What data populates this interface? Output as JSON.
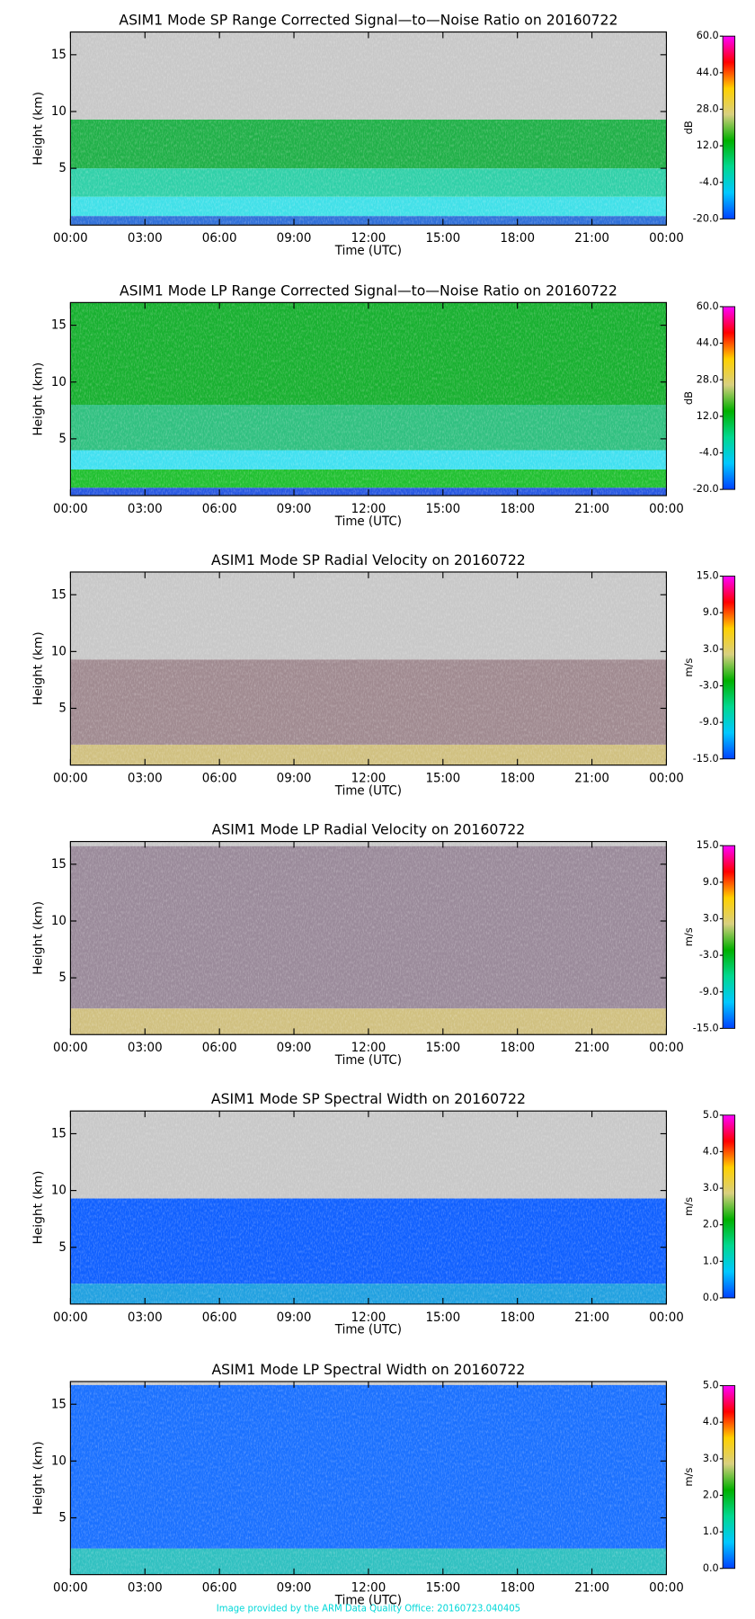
{
  "chart_data": [
    {
      "type": "heatmap",
      "title": "ASIM1 Mode SP Range Corrected Signal—to—Noise Ratio on 20160722",
      "xlabel": "Time (UTC)",
      "ylabel": "Height (km)",
      "xlim": [
        0,
        24
      ],
      "xticks": [
        {
          "value": 0,
          "label": "00:00"
        },
        {
          "value": 3,
          "label": "03:00"
        },
        {
          "value": 6,
          "label": "06:00"
        },
        {
          "value": 9,
          "label": "09:00"
        },
        {
          "value": 12,
          "label": "12:00"
        },
        {
          "value": 15,
          "label": "15:00"
        },
        {
          "value": 18,
          "label": "18:00"
        },
        {
          "value": 21,
          "label": "21:00"
        },
        {
          "value": 24,
          "label": "00:00"
        }
      ],
      "ylim": [
        0,
        17
      ],
      "yticks": [
        5,
        10,
        15
      ],
      "colorbar": {
        "label": "dB",
        "lim": [
          -20,
          60
        ],
        "ticks": [
          {
            "value": -20,
            "label": "-20.0"
          },
          {
            "value": -4,
            "label": "-4.0"
          },
          {
            "value": 12,
            "label": "12.0"
          },
          {
            "value": 28,
            "label": "28.0"
          },
          {
            "value": 44,
            "label": "44.0"
          },
          {
            "value": 60,
            "label": "60.0"
          }
        ],
        "colors": [
          "#0040ff",
          "#00c8ff",
          "#00d890",
          "#00b000",
          "#d8d080",
          "#ffd000",
          "#ff0000",
          "#ff00ff"
        ]
      },
      "bands": [
        {
          "y": [
            0,
            0.8
          ],
          "color": "#3070d8"
        },
        {
          "y": [
            0.8,
            2.5
          ],
          "color": "#40e0e8"
        },
        {
          "y": [
            2.5,
            5
          ],
          "color": "#30d0a8"
        },
        {
          "y": [
            5,
            9.3
          ],
          "color": "#20b048"
        },
        {
          "y": [
            9.3,
            17
          ],
          "color": "#c8c8c8"
        }
      ]
    },
    {
      "type": "heatmap",
      "title": "ASIM1 Mode LP Range Corrected Signal—to—Noise Ratio on 20160722",
      "xlabel": "Time (UTC)",
      "ylabel": "Height (km)",
      "xlim": [
        0,
        24
      ],
      "xticks": [
        {
          "value": 0,
          "label": "00:00"
        },
        {
          "value": 3,
          "label": "03:00"
        },
        {
          "value": 6,
          "label": "06:00"
        },
        {
          "value": 9,
          "label": "09:00"
        },
        {
          "value": 12,
          "label": "12:00"
        },
        {
          "value": 15,
          "label": "15:00"
        },
        {
          "value": 18,
          "label": "18:00"
        },
        {
          "value": 21,
          "label": "21:00"
        },
        {
          "value": 24,
          "label": "00:00"
        }
      ],
      "ylim": [
        0,
        17
      ],
      "yticks": [
        5,
        10,
        15
      ],
      "colorbar": {
        "label": "dB",
        "lim": [
          -20,
          60
        ],
        "ticks": [
          {
            "value": -20,
            "label": "-20.0"
          },
          {
            "value": -4,
            "label": "-4.0"
          },
          {
            "value": 12,
            "label": "12.0"
          },
          {
            "value": 28,
            "label": "28.0"
          },
          {
            "value": 44,
            "label": "44.0"
          },
          {
            "value": 60,
            "label": "60.0"
          }
        ],
        "colors": [
          "#0040ff",
          "#00c8ff",
          "#00d890",
          "#00b000",
          "#d8d080",
          "#ffd000",
          "#ff0000",
          "#ff00ff"
        ]
      },
      "bands": [
        {
          "y": [
            0,
            0.7
          ],
          "color": "#2858e0"
        },
        {
          "y": [
            0.7,
            2.3
          ],
          "color": "#20c030"
        },
        {
          "y": [
            2.3,
            4
          ],
          "color": "#40e0f0"
        },
        {
          "y": [
            4,
            8
          ],
          "color": "#30c080"
        },
        {
          "y": [
            8,
            17
          ],
          "color": "#18b030"
        }
      ]
    },
    {
      "type": "heatmap",
      "title": "ASIM1 Mode SP Radial Velocity  on 20160722",
      "xlabel": "Time (UTC)",
      "ylabel": "Height (km)",
      "xlim": [
        0,
        24
      ],
      "xticks": [
        {
          "value": 0,
          "label": "00:00"
        },
        {
          "value": 3,
          "label": "03:00"
        },
        {
          "value": 6,
          "label": "06:00"
        },
        {
          "value": 9,
          "label": "09:00"
        },
        {
          "value": 12,
          "label": "12:00"
        },
        {
          "value": 15,
          "label": "15:00"
        },
        {
          "value": 18,
          "label": "18:00"
        },
        {
          "value": 21,
          "label": "21:00"
        },
        {
          "value": 24,
          "label": "00:00"
        }
      ],
      "ylim": [
        0,
        17
      ],
      "yticks": [
        5,
        10,
        15
      ],
      "colorbar": {
        "label": "m/s",
        "lim": [
          -15,
          15
        ],
        "ticks": [
          {
            "value": -15,
            "label": "-15.0"
          },
          {
            "value": -9,
            "label": "-9.0"
          },
          {
            "value": -3,
            "label": "-3.0"
          },
          {
            "value": 3,
            "label": "3.0"
          },
          {
            "value": 9,
            "label": "9.0"
          },
          {
            "value": 15,
            "label": "15.0"
          }
        ],
        "colors": [
          "#0040ff",
          "#00c8ff",
          "#00d890",
          "#00b000",
          "#d8d080",
          "#ffd000",
          "#ff0000",
          "#ff00ff"
        ]
      },
      "bands": [
        {
          "y": [
            0,
            1.8
          ],
          "color": "#d0c080"
        },
        {
          "y": [
            1.8,
            9.3
          ],
          "color": "#a08a90"
        },
        {
          "y": [
            9.3,
            17
          ],
          "color": "#c8c8c8"
        }
      ]
    },
    {
      "type": "heatmap",
      "title": "ASIM1 Mode LP Radial Velocity  on 20160722",
      "xlabel": "Time (UTC)",
      "ylabel": "Height (km)",
      "xlim": [
        0,
        24
      ],
      "xticks": [
        {
          "value": 0,
          "label": "00:00"
        },
        {
          "value": 3,
          "label": "03:00"
        },
        {
          "value": 6,
          "label": "06:00"
        },
        {
          "value": 9,
          "label": "09:00"
        },
        {
          "value": 12,
          "label": "12:00"
        },
        {
          "value": 15,
          "label": "15:00"
        },
        {
          "value": 18,
          "label": "18:00"
        },
        {
          "value": 21,
          "label": "21:00"
        },
        {
          "value": 24,
          "label": "00:00"
        }
      ],
      "ylim": [
        0,
        17
      ],
      "yticks": [
        5,
        10,
        15
      ],
      "colorbar": {
        "label": "m/s",
        "lim": [
          -15,
          15
        ],
        "ticks": [
          {
            "value": -15,
            "label": "-15.0"
          },
          {
            "value": -9,
            "label": "-9.0"
          },
          {
            "value": -3,
            "label": "-3.0"
          },
          {
            "value": 3,
            "label": "3.0"
          },
          {
            "value": 9,
            "label": "9.0"
          },
          {
            "value": 15,
            "label": "15.0"
          }
        ],
        "colors": [
          "#0040ff",
          "#00c8ff",
          "#00d890",
          "#00b000",
          "#d8d080",
          "#ffd000",
          "#ff0000",
          "#ff00ff"
        ]
      },
      "bands": [
        {
          "y": [
            0,
            2.3
          ],
          "color": "#d0c080"
        },
        {
          "y": [
            2.3,
            16.6
          ],
          "color": "#9a8a9a"
        },
        {
          "y": [
            16.6,
            17
          ],
          "color": "#c8c8c8"
        }
      ]
    },
    {
      "type": "heatmap",
      "title": "ASIM1 Mode SP Spectral Width  on 20160722",
      "xlabel": "Time (UTC)",
      "ylabel": "Height (km)",
      "xlim": [
        0,
        24
      ],
      "xticks": [
        {
          "value": 0,
          "label": "00:00"
        },
        {
          "value": 3,
          "label": "03:00"
        },
        {
          "value": 6,
          "label": "06:00"
        },
        {
          "value": 9,
          "label": "09:00"
        },
        {
          "value": 12,
          "label": "12:00"
        },
        {
          "value": 15,
          "label": "15:00"
        },
        {
          "value": 18,
          "label": "18:00"
        },
        {
          "value": 21,
          "label": "21:00"
        },
        {
          "value": 24,
          "label": "00:00"
        }
      ],
      "ylim": [
        0,
        17
      ],
      "yticks": [
        5,
        10,
        15
      ],
      "colorbar": {
        "label": "m/s",
        "lim": [
          0,
          5
        ],
        "ticks": [
          {
            "value": 0,
            "label": "0.0"
          },
          {
            "value": 1,
            "label": "1.0"
          },
          {
            "value": 2,
            "label": "2.0"
          },
          {
            "value": 3,
            "label": "3.0"
          },
          {
            "value": 4,
            "label": "4.0"
          },
          {
            "value": 5,
            "label": "5.0"
          }
        ],
        "colors": [
          "#0040ff",
          "#00c8ff",
          "#00d890",
          "#00b000",
          "#d8d080",
          "#ffd000",
          "#ff0000",
          "#ff00ff"
        ]
      },
      "bands": [
        {
          "y": [
            0,
            1.8
          ],
          "color": "#20a0e0"
        },
        {
          "y": [
            1.8,
            9.3
          ],
          "color": "#1060ff"
        },
        {
          "y": [
            9.3,
            17
          ],
          "color": "#c8c8c8"
        }
      ]
    },
    {
      "type": "heatmap",
      "title": "ASIM1 Mode LP Spectral Width  on 20160722",
      "xlabel": "Time (UTC)",
      "ylabel": "Height (km)",
      "xlim": [
        0,
        24
      ],
      "xticks": [
        {
          "value": 0,
          "label": "00:00"
        },
        {
          "value": 3,
          "label": "03:00"
        },
        {
          "value": 6,
          "label": "06:00"
        },
        {
          "value": 9,
          "label": "09:00"
        },
        {
          "value": 12,
          "label": "12:00"
        },
        {
          "value": 15,
          "label": "15:00"
        },
        {
          "value": 18,
          "label": "18:00"
        },
        {
          "value": 21,
          "label": "21:00"
        },
        {
          "value": 24,
          "label": "00:00"
        }
      ],
      "ylim": [
        0,
        17
      ],
      "yticks": [
        5,
        10,
        15
      ],
      "colorbar": {
        "label": "m/s",
        "lim": [
          0,
          5
        ],
        "ticks": [
          {
            "value": 0,
            "label": "0.0"
          },
          {
            "value": 1,
            "label": "1.0"
          },
          {
            "value": 2,
            "label": "2.0"
          },
          {
            "value": 3,
            "label": "3.0"
          },
          {
            "value": 4,
            "label": "4.0"
          },
          {
            "value": 5,
            "label": "5.0"
          }
        ],
        "colors": [
          "#0040ff",
          "#00c8ff",
          "#00d890",
          "#00b000",
          "#d8d080",
          "#ffd000",
          "#ff0000",
          "#ff00ff"
        ]
      },
      "bands": [
        {
          "y": [
            0,
            2.3
          ],
          "color": "#30c0c0"
        },
        {
          "y": [
            2.3,
            16.7
          ],
          "color": "#1a70ff"
        },
        {
          "y": [
            16.7,
            17
          ],
          "color": "#c8c8c8"
        }
      ]
    }
  ],
  "footer": "Image provided by the ARM Data Quality Office: 20160723.040405"
}
